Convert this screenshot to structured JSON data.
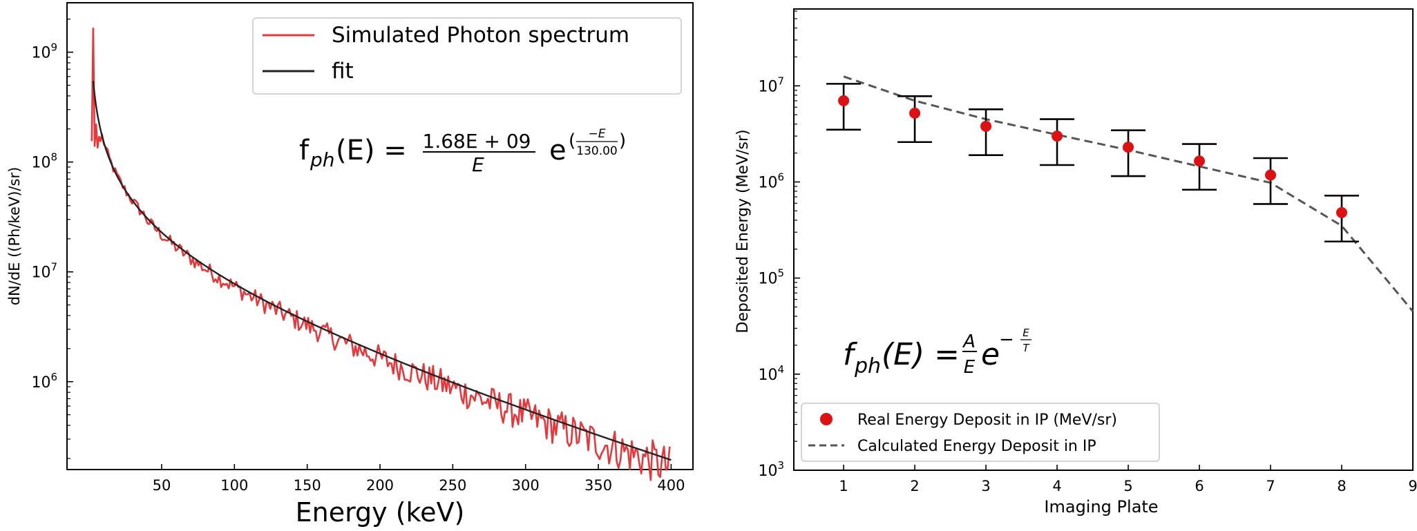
{
  "chart_data": [
    {
      "type": "line",
      "title": "",
      "xlabel": "Energy (keV)",
      "ylabel": "dN/dE ((Ph/keV)/sr)",
      "xlim": [
        -15,
        415
      ],
      "ylim_log10": [
        5.2,
        9.45
      ],
      "yscale": "log",
      "x_ticks": [
        50,
        100,
        150,
        200,
        250,
        300,
        350,
        400
      ],
      "x_tick_labels": [
        "50",
        "100",
        "150",
        "200",
        "250",
        "300",
        "350",
        "400"
      ],
      "y_ticks_log10": [
        6,
        7,
        8,
        9
      ],
      "y_tick_bases": [
        "10",
        "10",
        "10",
        "10"
      ],
      "y_tick_exps": [
        "6",
        "7",
        "8",
        "9"
      ],
      "legend": {
        "position": "top-right",
        "entries": [
          "Simulated Photon spectrum",
          "fit"
        ],
        "colors": [
          "#e8363a",
          "#222222"
        ]
      },
      "formula": {
        "lhs_f": "f",
        "lhs_sub": "ph",
        "lhs_arg": "(E) =",
        "numerator": "1.68E + 09",
        "denominator": "E",
        "exp_base": "e",
        "exp_num": "−E",
        "exp_den": "130.00"
      },
      "series": [
        {
          "name": "Simulated Photon spectrum",
          "color": "#e8363a",
          "spike": {
            "x": [
              2,
              3,
              4,
              5,
              6,
              7,
              8
            ],
            "y": [
              155000000.0,
              1650000000.0,
              140000000.0,
              220000000.0,
              135000000.0,
              170000000.0,
              155000000.0
            ]
          },
          "x_start": 9,
          "x_end": 400,
          "x_step": 1.3,
          "noise_amp": [
            0.04,
            0.2
          ]
        },
        {
          "name": "fit",
          "color": "#222222",
          "A": 1680000000.0,
          "T": 130.0,
          "x_start": 3,
          "x_end": 400
        }
      ]
    },
    {
      "type": "scatter",
      "title": "",
      "xlabel": "Imaging Plate",
      "ylabel": "Deposited Energy (MeV/sr)",
      "xlim": [
        0.3,
        9
      ],
      "ylim_log10": [
        3,
        7.8
      ],
      "yscale": "log",
      "x_ticks": [
        1,
        2,
        3,
        4,
        5,
        6,
        7,
        8,
        9
      ],
      "x_tick_labels": [
        "1",
        "2",
        "3",
        "4",
        "5",
        "6",
        "7",
        "8",
        "9"
      ],
      "y_ticks_log10": [
        3,
        4,
        5,
        6,
        7
      ],
      "y_tick_bases": [
        "10",
        "10",
        "10",
        "10",
        "10"
      ],
      "y_tick_exps": [
        "3",
        "4",
        "5",
        "6",
        "7"
      ],
      "legend": {
        "position": "lower-left",
        "entries": [
          "Real Energy Deposit in IP (MeV/sr)",
          "Calculated Energy Deposit in IP"
        ],
        "colors": [
          "#dd1111",
          "#555555"
        ]
      },
      "formula": {
        "lhs_f": "f",
        "lhs_sub": "ph",
        "lhs_arg": "(E) =",
        "frac_num": "A",
        "frac_den": "E",
        "exp_base": "e",
        "exp_sign": "−",
        "exp_num": "E",
        "exp_den": "T"
      },
      "series": [
        {
          "name": "Real Energy Deposit in IP (MeV/sr)",
          "color": "#dd1111",
          "x": [
            1,
            2,
            3,
            4,
            5,
            6,
            7,
            8
          ],
          "y": [
            7000000.0,
            5200000.0,
            3800000.0,
            3000000.0,
            2300000.0,
            1650000.0,
            1180000.0,
            480000.0
          ],
          "y_err_low": [
            3500000.0,
            2600000.0,
            1900000.0,
            1500000.0,
            1150000.0,
            830000.0,
            590000.0,
            240000.0
          ],
          "y_err_high": [
            10500000.0,
            7800000.0,
            5700000.0,
            4500000.0,
            3450000.0,
            2480000.0,
            1770000.0,
            720000.0
          ]
        },
        {
          "name": "Calculated Energy Deposit in IP",
          "color": "#555555",
          "x": [
            1,
            2,
            3,
            4,
            5,
            6,
            7,
            8,
            9
          ],
          "y": [
            12500000.0,
            7000000.0,
            4500000.0,
            3100000.0,
            2150000.0,
            1450000.0,
            980000.0,
            350000.0,
            45000.0
          ]
        }
      ]
    }
  ]
}
